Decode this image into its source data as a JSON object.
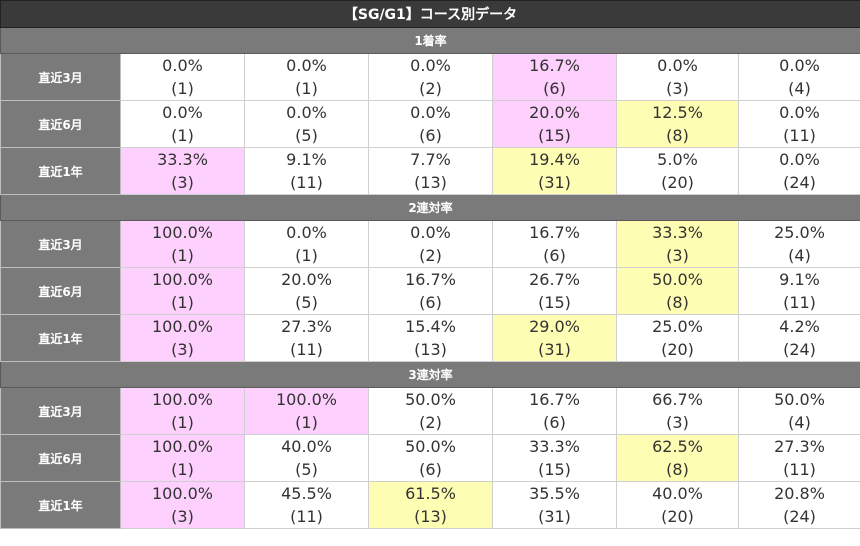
{
  "title": "【SG/G1】コース別データ",
  "colors": {
    "header_dark": "#3a3a3a",
    "section_gray": "#7a7a7a",
    "highlight_pink": "#fdd0fd",
    "highlight_yellow": "#fdfdb4"
  },
  "sections": [
    {
      "label": "1着率",
      "rows": [
        {
          "label": "直近3月",
          "cells": [
            {
              "pct": "0.0%",
              "count": "(1)",
              "hl": ""
            },
            {
              "pct": "0.0%",
              "count": "(1)",
              "hl": ""
            },
            {
              "pct": "0.0%",
              "count": "(2)",
              "hl": ""
            },
            {
              "pct": "16.7%",
              "count": "(6)",
              "hl": "pink"
            },
            {
              "pct": "0.0%",
              "count": "(3)",
              "hl": ""
            },
            {
              "pct": "0.0%",
              "count": "(4)",
              "hl": ""
            }
          ]
        },
        {
          "label": "直近6月",
          "cells": [
            {
              "pct": "0.0%",
              "count": "(1)",
              "hl": ""
            },
            {
              "pct": "0.0%",
              "count": "(5)",
              "hl": ""
            },
            {
              "pct": "0.0%",
              "count": "(6)",
              "hl": ""
            },
            {
              "pct": "20.0%",
              "count": "(15)",
              "hl": "pink"
            },
            {
              "pct": "12.5%",
              "count": "(8)",
              "hl": "yellow"
            },
            {
              "pct": "0.0%",
              "count": "(11)",
              "hl": ""
            }
          ]
        },
        {
          "label": "直近1年",
          "cells": [
            {
              "pct": "33.3%",
              "count": "(3)",
              "hl": "pink"
            },
            {
              "pct": "9.1%",
              "count": "(11)",
              "hl": ""
            },
            {
              "pct": "7.7%",
              "count": "(13)",
              "hl": ""
            },
            {
              "pct": "19.4%",
              "count": "(31)",
              "hl": "yellow"
            },
            {
              "pct": "5.0%",
              "count": "(20)",
              "hl": ""
            },
            {
              "pct": "0.0%",
              "count": "(24)",
              "hl": ""
            }
          ]
        }
      ]
    },
    {
      "label": "2連対率",
      "rows": [
        {
          "label": "直近3月",
          "cells": [
            {
              "pct": "100.0%",
              "count": "(1)",
              "hl": "pink"
            },
            {
              "pct": "0.0%",
              "count": "(1)",
              "hl": ""
            },
            {
              "pct": "0.0%",
              "count": "(2)",
              "hl": ""
            },
            {
              "pct": "16.7%",
              "count": "(6)",
              "hl": ""
            },
            {
              "pct": "33.3%",
              "count": "(3)",
              "hl": "yellow"
            },
            {
              "pct": "25.0%",
              "count": "(4)",
              "hl": ""
            }
          ]
        },
        {
          "label": "直近6月",
          "cells": [
            {
              "pct": "100.0%",
              "count": "(1)",
              "hl": "pink"
            },
            {
              "pct": "20.0%",
              "count": "(5)",
              "hl": ""
            },
            {
              "pct": "16.7%",
              "count": "(6)",
              "hl": ""
            },
            {
              "pct": "26.7%",
              "count": "(15)",
              "hl": ""
            },
            {
              "pct": "50.0%",
              "count": "(8)",
              "hl": "yellow"
            },
            {
              "pct": "9.1%",
              "count": "(11)",
              "hl": ""
            }
          ]
        },
        {
          "label": "直近1年",
          "cells": [
            {
              "pct": "100.0%",
              "count": "(3)",
              "hl": "pink"
            },
            {
              "pct": "27.3%",
              "count": "(11)",
              "hl": ""
            },
            {
              "pct": "15.4%",
              "count": "(13)",
              "hl": ""
            },
            {
              "pct": "29.0%",
              "count": "(31)",
              "hl": "yellow"
            },
            {
              "pct": "25.0%",
              "count": "(20)",
              "hl": ""
            },
            {
              "pct": "4.2%",
              "count": "(24)",
              "hl": ""
            }
          ]
        }
      ]
    },
    {
      "label": "3連対率",
      "rows": [
        {
          "label": "直近3月",
          "cells": [
            {
              "pct": "100.0%",
              "count": "(1)",
              "hl": "pink"
            },
            {
              "pct": "100.0%",
              "count": "(1)",
              "hl": "pink"
            },
            {
              "pct": "50.0%",
              "count": "(2)",
              "hl": ""
            },
            {
              "pct": "16.7%",
              "count": "(6)",
              "hl": ""
            },
            {
              "pct": "66.7%",
              "count": "(3)",
              "hl": ""
            },
            {
              "pct": "50.0%",
              "count": "(4)",
              "hl": ""
            }
          ]
        },
        {
          "label": "直近6月",
          "cells": [
            {
              "pct": "100.0%",
              "count": "(1)",
              "hl": "pink"
            },
            {
              "pct": "40.0%",
              "count": "(5)",
              "hl": ""
            },
            {
              "pct": "50.0%",
              "count": "(6)",
              "hl": ""
            },
            {
              "pct": "33.3%",
              "count": "(15)",
              "hl": ""
            },
            {
              "pct": "62.5%",
              "count": "(8)",
              "hl": "yellow"
            },
            {
              "pct": "27.3%",
              "count": "(11)",
              "hl": ""
            }
          ]
        },
        {
          "label": "直近1年",
          "cells": [
            {
              "pct": "100.0%",
              "count": "(3)",
              "hl": "pink"
            },
            {
              "pct": "45.5%",
              "count": "(11)",
              "hl": ""
            },
            {
              "pct": "61.5%",
              "count": "(13)",
              "hl": "yellow"
            },
            {
              "pct": "35.5%",
              "count": "(31)",
              "hl": ""
            },
            {
              "pct": "40.0%",
              "count": "(20)",
              "hl": ""
            },
            {
              "pct": "20.8%",
              "count": "(24)",
              "hl": ""
            }
          ]
        }
      ]
    }
  ]
}
